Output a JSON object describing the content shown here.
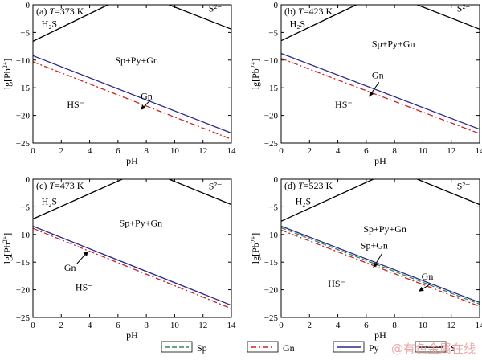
{
  "watermark": "@有色金属在线",
  "legend": [
    {
      "label": "Sp",
      "color": "#2e8b57",
      "dash": "6,3"
    },
    {
      "label": "Gn",
      "color": "#cc2222",
      "dash": "7,3,2,3"
    },
    {
      "label": "Py",
      "color": "#2a2a8c",
      "dash": ""
    },
    {
      "label": "S",
      "color": "#000000",
      "dash": ""
    }
  ],
  "chart_data": [
    {
      "type": "line",
      "panel": "(a)",
      "condition": "=373 K",
      "xlabel": "pH",
      "ylabel": "lg[Pb",
      "ylabel_sup": "2+",
      "xlim": [
        0,
        14
      ],
      "ylim": [
        -25,
        0
      ],
      "xticks": [
        0,
        2,
        4,
        6,
        8,
        10,
        12,
        14
      ],
      "yticks": [
        -25,
        -20,
        -15,
        -10,
        -5,
        0
      ],
      "series": [
        {
          "name": "S",
          "points": [
            [
              0,
              -6.6
            ],
            [
              5.3,
              0
            ]
          ]
        },
        {
          "name": "S",
          "points": [
            [
              9.6,
              0
            ],
            [
              14,
              -4.4
            ]
          ]
        },
        {
          "name": "Py",
          "points": [
            [
              0,
              -9.2
            ],
            [
              14,
              -23.2
            ]
          ]
        },
        {
          "name": "Gn",
          "points": [
            [
              0,
              -10.3
            ],
            [
              14,
              -24.3
            ]
          ]
        }
      ],
      "labels": [
        {
          "text": "H₂S",
          "x": 0.6,
          "y": -4.0
        },
        {
          "text": "S²⁻",
          "x": 12.4,
          "y": -1.2
        },
        {
          "text": "Sp+Py+Gn",
          "x": 5.8,
          "y": -10.6
        },
        {
          "text": "HS⁻",
          "x": 2.4,
          "y": -18.6
        },
        {
          "text": "Gn",
          "x": 7.6,
          "y": -17.1
        }
      ],
      "arrows": [
        {
          "from": [
            8.3,
            -17.2
          ],
          "to": [
            7.6,
            -19.0
          ]
        }
      ]
    },
    {
      "type": "line",
      "panel": "(b)",
      "condition": "=423 K",
      "xlabel": "pH",
      "ylabel": "lg[Pb",
      "ylabel_sup": "2+",
      "xlim": [
        0,
        14
      ],
      "ylim": [
        -25,
        0
      ],
      "xticks": [
        0,
        2,
        4,
        6,
        8,
        10,
        12,
        14
      ],
      "yticks": [
        -25,
        -20,
        -15,
        -10,
        -5,
        0
      ],
      "series": [
        {
          "name": "S",
          "points": [
            [
              0,
              -6.5
            ],
            [
              5.3,
              0
            ]
          ]
        },
        {
          "name": "S",
          "points": [
            [
              9.6,
              0
            ],
            [
              14,
              -4.4
            ]
          ]
        },
        {
          "name": "Py",
          "points": [
            [
              0,
              -8.8
            ],
            [
              14,
              -22.5
            ]
          ]
        },
        {
          "name": "Gn",
          "points": [
            [
              0,
              -9.7
            ],
            [
              14,
              -23.3
            ]
          ]
        }
      ],
      "labels": [
        {
          "text": "H₂S",
          "x": 0.6,
          "y": -4.0
        },
        {
          "text": "S²⁻",
          "x": 12.4,
          "y": -1.2
        },
        {
          "text": "Sp+Py+Gn",
          "x": 6.4,
          "y": -7.6
        },
        {
          "text": "HS⁻",
          "x": 3.8,
          "y": -18.6
        },
        {
          "text": "Gn",
          "x": 6.4,
          "y": -13.3
        }
      ],
      "arrows": [
        {
          "from": [
            6.9,
            -14.0
          ],
          "to": [
            6.2,
            -16.6
          ]
        }
      ]
    },
    {
      "type": "line",
      "panel": "(c)",
      "condition": "=473 K",
      "xlabel": "pH",
      "ylabel": "lg[Pb",
      "ylabel_sup": "2+",
      "xlim": [
        0,
        14
      ],
      "ylim": [
        -25,
        0
      ],
      "xticks": [
        0,
        2,
        4,
        6,
        8,
        10,
        12,
        14
      ],
      "yticks": [
        -25,
        -20,
        -15,
        -10,
        -5,
        0
      ],
      "series": [
        {
          "name": "S",
          "points": [
            [
              0,
              -7.2
            ],
            [
              6.3,
              0
            ]
          ]
        },
        {
          "name": "S",
          "points": [
            [
              9.6,
              0
            ],
            [
              14,
              -4.6
            ]
          ]
        },
        {
          "name": "Py",
          "points": [
            [
              0,
              -8.5
            ],
            [
              14,
              -22.8
            ]
          ]
        },
        {
          "name": "Gn",
          "points": [
            [
              0,
              -8.9
            ],
            [
              14,
              -23.4
            ]
          ]
        }
      ],
      "labels": [
        {
          "text": "H₂S",
          "x": 0.6,
          "y": -4.6
        },
        {
          "text": "S²⁻",
          "x": 12.4,
          "y": -1.8
        },
        {
          "text": "Sp+Py+Gn",
          "x": 6.1,
          "y": -8.5
        },
        {
          "text": "Gn",
          "x": 2.2,
          "y": -16.6
        },
        {
          "text": "HS⁻",
          "x": 3.0,
          "y": -20.1
        }
      ],
      "arrows": [
        {
          "from": [
            3.1,
            -15.3
          ],
          "to": [
            3.9,
            -13.0
          ]
        }
      ]
    },
    {
      "type": "line",
      "panel": "(d)",
      "condition": "=523 K",
      "xlabel": "pH",
      "ylabel": "lg[Pb",
      "ylabel_sup": "2+",
      "xlim": [
        0,
        14
      ],
      "ylim": [
        -25,
        0
      ],
      "xticks": [
        0,
        2,
        4,
        6,
        8,
        10,
        12,
        14
      ],
      "yticks": [
        -25,
        -20,
        -15,
        -10,
        -5,
        0
      ],
      "series": [
        {
          "name": "S",
          "points": [
            [
              0,
              -7.6
            ],
            [
              6.5,
              0
            ]
          ]
        },
        {
          "name": "S",
          "points": [
            [
              9.6,
              0
            ],
            [
              14,
              -4.6
            ]
          ]
        },
        {
          "name": "Py",
          "points": [
            [
              0,
              -8.5
            ],
            [
              14,
              -22.3
            ]
          ]
        },
        {
          "name": "Sp",
          "points": [
            [
              0,
              -8.8
            ],
            [
              14,
              -22.6
            ]
          ]
        },
        {
          "name": "Gn",
          "points": [
            [
              0,
              -9.2
            ],
            [
              14,
              -23.0
            ]
          ]
        }
      ],
      "labels": [
        {
          "text": "H₂S",
          "x": 1.0,
          "y": -4.6
        },
        {
          "text": "S²⁻",
          "x": 12.4,
          "y": -1.8
        },
        {
          "text": "Sp+Py+Gn",
          "x": 5.8,
          "y": -9.6
        },
        {
          "text": "Sp+Gn",
          "x": 5.6,
          "y": -12.6
        },
        {
          "text": "Gn",
          "x": 9.9,
          "y": -18.2
        },
        {
          "text": "HS⁻",
          "x": 3.3,
          "y": -19.5
        }
      ],
      "arrows": [
        {
          "from": [
            7.1,
            -13.5
          ],
          "to": [
            6.5,
            -16.0
          ]
        },
        {
          "from": [
            10.5,
            -19.0
          ],
          "to": [
            9.7,
            -20.3
          ]
        }
      ]
    }
  ]
}
